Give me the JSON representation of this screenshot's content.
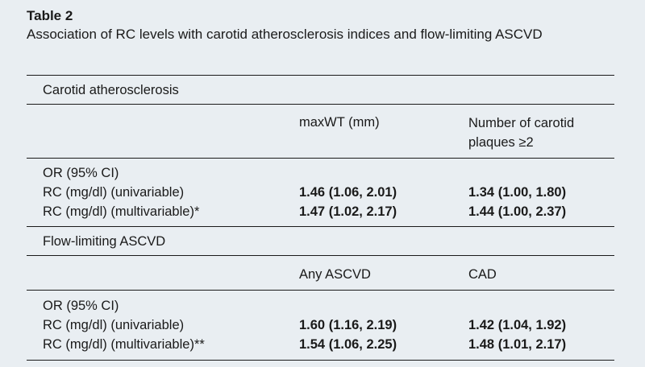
{
  "caption": {
    "label": "Table 2",
    "title": "Association of RC levels with carotid atherosclerosis indices and flow-limiting ASCVD"
  },
  "sections": [
    {
      "heading": "Carotid atherosclerosis",
      "columns": [
        "maxWT (mm)",
        "Number of carotid plaques ≥2"
      ],
      "stat_label": "OR (95% CI)",
      "rows": [
        {
          "label": "RC (mg/dl) (univariable)",
          "values": [
            "1.46 (1.06, 2.01)",
            "1.34 (1.00, 1.80)"
          ]
        },
        {
          "label": "RC (mg/dl) (multivariable)*",
          "values": [
            "1.47 (1.02, 2.17)",
            "1.44 (1.00, 2.37)"
          ]
        }
      ]
    },
    {
      "heading": "Flow-limiting ASCVD",
      "columns": [
        "Any ASCVD",
        "CAD"
      ],
      "stat_label": "OR (95% CI)",
      "rows": [
        {
          "label": "RC (mg/dl) (univariable)",
          "values": [
            "1.60 (1.16, 2.19)",
            "1.42 (1.04, 1.92)"
          ]
        },
        {
          "label": "RC (mg/dl) (multivariable)**",
          "values": [
            "1.54 (1.06, 2.25)",
            "1.48 (1.01, 2.17)"
          ]
        }
      ]
    }
  ]
}
